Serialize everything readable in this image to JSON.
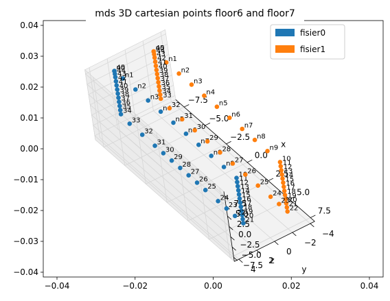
{
  "chart_data": {
    "type": "scatter",
    "title": "mds 3D cartesian points floor6 and floor7",
    "xlabel": "x",
    "ylabel": "y",
    "zlabel": "z",
    "legend": {
      "placement": "top-right",
      "entries": [
        "fisier0",
        "fisier1"
      ]
    },
    "grid": true,
    "outer_axes": {
      "xticks": [
        "−0.04",
        "−0.02",
        "0.00",
        "0.02",
        "0.04"
      ],
      "yticks": [
        "0.04",
        "0.03",
        "0.02",
        "0.01",
        "0.00",
        "−0.01",
        "−0.02",
        "−0.03",
        "−0.04"
      ]
    },
    "axes3d": {
      "xlim": [
        -8.5,
        8
      ],
      "ylim": [
        -4.5,
        4.5
      ],
      "zlim": [
        -8.5,
        8.5
      ],
      "xticks": [
        "−7.5",
        "−5.0",
        "−2.5",
        "0.0",
        "2.5",
        "5.0",
        "7.5"
      ],
      "yticks": [
        "−4",
        "−2",
        "0",
        "2",
        "4"
      ],
      "zticks": [
        "−7.5",
        "−5.0",
        "−2.5",
        "0.0",
        "2.5",
        "5.0",
        "7.5"
      ]
    },
    "series": [
      {
        "name": "fisier0",
        "color": "#1f77b4",
        "y": 2.2,
        "points": [
          {
            "label": "n0",
            "x": -7.5,
            "z": 7.5
          },
          {
            "label": "n1",
            "x": -6.5,
            "z": 7.5
          },
          {
            "label": "n2",
            "x": -5.0,
            "z": 7.5
          },
          {
            "label": "n3",
            "x": -3.5,
            "z": 7.5
          },
          {
            "label": "n4",
            "x": -2.0,
            "z": 7.5
          },
          {
            "label": "n5",
            "x": -0.5,
            "z": 7.5
          },
          {
            "label": "n6",
            "x": 1.0,
            "z": 7.5
          },
          {
            "label": "n7",
            "x": 2.5,
            "z": 7.5
          },
          {
            "label": "n8",
            "x": 4.0,
            "z": 7.5
          },
          {
            "label": "n9",
            "x": 5.5,
            "z": 7.5
          },
          {
            "label": "10",
            "x": 7.0,
            "z": 7.5
          },
          {
            "label": "11",
            "x": 7.0,
            "z": 6.5
          },
          {
            "label": "12",
            "x": 7.0,
            "z": 5.5
          },
          {
            "label": "13",
            "x": 7.0,
            "z": 4.5
          },
          {
            "label": "14",
            "x": 7.0,
            "z": 3.5
          },
          {
            "label": "15",
            "x": 7.0,
            "z": 2.5
          },
          {
            "label": "16",
            "x": 7.0,
            "z": 1.5
          },
          {
            "label": "17",
            "x": 7.0,
            "z": 0.5
          },
          {
            "label": "18",
            "x": 7.0,
            "z": -0.5
          },
          {
            "label": "19",
            "x": 7.0,
            "z": -1.5
          },
          {
            "label": "20",
            "x": 7.0,
            "z": -2.5
          },
          {
            "label": "21",
            "x": 7.0,
            "z": -3.5
          },
          {
            "label": "22",
            "x": 6.0,
            "z": -3.5
          },
          {
            "label": "23",
            "x": 5.0,
            "z": -3.5
          },
          {
            "label": "24",
            "x": 4.0,
            "z": -3.5
          },
          {
            "label": "25",
            "x": 2.5,
            "z": -3.5
          },
          {
            "label": "26",
            "x": 1.5,
            "z": -3.5
          },
          {
            "label": "27",
            "x": 0.5,
            "z": -3.5
          },
          {
            "label": "28",
            "x": -0.5,
            "z": -3.5
          },
          {
            "label": "29",
            "x": -1.5,
            "z": -3.5
          },
          {
            "label": "30",
            "x": -2.5,
            "z": -3.5
          },
          {
            "label": "31",
            "x": -3.5,
            "z": -3.5
          },
          {
            "label": "32",
            "x": -5.0,
            "z": -3.5
          },
          {
            "label": "33",
            "x": -6.5,
            "z": -3.5
          },
          {
            "label": "34",
            "x": -7.5,
            "z": -3.0
          },
          {
            "label": "35",
            "x": -7.5,
            "z": -2.0
          },
          {
            "label": "36",
            "x": -7.5,
            "z": -1.0
          },
          {
            "label": "37",
            "x": -7.5,
            "z": 0.0
          },
          {
            "label": "38",
            "x": -7.5,
            "z": 1.0
          },
          {
            "label": "39",
            "x": -7.5,
            "z": 2.0
          },
          {
            "label": "40",
            "x": -7.5,
            "z": 3.0
          },
          {
            "label": "41",
            "x": -7.5,
            "z": 4.0
          },
          {
            "label": "42",
            "x": -7.5,
            "z": 5.0
          },
          {
            "label": "43",
            "x": -7.5,
            "z": 6.0
          },
          {
            "label": "44",
            "x": -7.5,
            "z": 6.8
          },
          {
            "label": "45",
            "x": -7.5,
            "z": 7.5
          }
        ]
      },
      {
        "name": "fisier1",
        "color": "#ff7f0e",
        "y": -2.2,
        "points": [
          {
            "label": "n0",
            "x": -7.5,
            "z": 7.5
          },
          {
            "label": "n1",
            "x": -6.0,
            "z": 7.5
          },
          {
            "label": "n2",
            "x": -4.5,
            "z": 7.5
          },
          {
            "label": "n3",
            "x": -3.0,
            "z": 7.5
          },
          {
            "label": "n4",
            "x": -1.5,
            "z": 7.5
          },
          {
            "label": "n5",
            "x": 0.0,
            "z": 7.5
          },
          {
            "label": "n6",
            "x": 1.5,
            "z": 7.5
          },
          {
            "label": "n7",
            "x": 3.0,
            "z": 7.5
          },
          {
            "label": "n8",
            "x": 4.5,
            "z": 7.5
          },
          {
            "label": "n9",
            "x": 6.0,
            "z": 7.5
          },
          {
            "label": "10",
            "x": 7.5,
            "z": 7.5
          },
          {
            "label": "11",
            "x": 7.5,
            "z": 6.5
          },
          {
            "label": "12",
            "x": 7.5,
            "z": 5.5
          },
          {
            "label": "13",
            "x": 7.5,
            "z": 4.5
          },
          {
            "label": "14",
            "x": 7.5,
            "z": 3.5
          },
          {
            "label": "15",
            "x": 7.5,
            "z": 2.5
          },
          {
            "label": "16",
            "x": 7.5,
            "z": 1.5
          },
          {
            "label": "17",
            "x": 7.5,
            "z": 0.5
          },
          {
            "label": "18",
            "x": 7.5,
            "z": -0.5
          },
          {
            "label": "19",
            "x": 7.5,
            "z": -1.5
          },
          {
            "label": "20",
            "x": 7.5,
            "z": -2.5
          },
          {
            "label": "21",
            "x": 7.5,
            "z": -3.5
          },
          {
            "label": "22",
            "x": 7.5,
            "z": -4.5
          },
          {
            "label": "23",
            "x": 6.5,
            "z": -4.5
          },
          {
            "label": "24",
            "x": 5.5,
            "z": -4.5
          },
          {
            "label": "25",
            "x": 4.0,
            "z": -4.5
          },
          {
            "label": "26",
            "x": 2.5,
            "z": -4.5
          },
          {
            "label": "27",
            "x": 1.0,
            "z": -4.5
          },
          {
            "label": "28",
            "x": -0.5,
            "z": -4.5
          },
          {
            "label": "29",
            "x": -2.0,
            "z": -4.5
          },
          {
            "label": "30",
            "x": -3.5,
            "z": -4.5
          },
          {
            "label": "31",
            "x": -5.0,
            "z": -4.5
          },
          {
            "label": "32",
            "x": -6.5,
            "z": -4.5
          },
          {
            "label": "33",
            "x": -7.5,
            "z": -4.0
          },
          {
            "label": "34",
            "x": -7.5,
            "z": -3.0
          },
          {
            "label": "35",
            "x": -7.5,
            "z": -2.0
          },
          {
            "label": "36",
            "x": -7.5,
            "z": -1.0
          },
          {
            "label": "37",
            "x": -7.5,
            "z": 0.0
          },
          {
            "label": "38",
            "x": -7.5,
            "z": 1.0
          },
          {
            "label": "39",
            "x": -7.5,
            "z": 2.0
          },
          {
            "label": "40",
            "x": -7.5,
            "z": 3.0
          },
          {
            "label": "41",
            "x": -7.5,
            "z": 4.0
          },
          {
            "label": "42",
            "x": -7.5,
            "z": 5.0
          },
          {
            "label": "43",
            "x": -7.5,
            "z": 6.0
          },
          {
            "label": "44",
            "x": -7.5,
            "z": 6.8
          },
          {
            "label": "45",
            "x": -7.5,
            "z": 7.5
          }
        ]
      }
    ]
  }
}
